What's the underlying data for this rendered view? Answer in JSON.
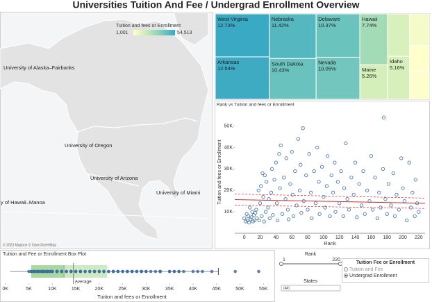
{
  "title": "Universities Tuition And Fee / Undergrad Enrollment Overview",
  "chart_data": [
    {
      "type": "map",
      "colorbar": {
        "title": "Tuition and fees or Enrollment",
        "range": [
          {
            "value": 1001,
            "label": "1,001"
          },
          {
            "value": 54513,
            "label": "54,513"
          }
        ]
      },
      "colorscale": [
        "#ffffcc",
        "#c7e9b4",
        "#7fcdbb",
        "#3aa9c4"
      ],
      "annotations": [
        "University of Alaska–Fairbanks",
        "University of Oregon",
        "University of Arizona",
        "University of Miami",
        "y of Hawaii–Manoa"
      ],
      "credits": "© 2023 Mapbox © OpenStreetMap"
    },
    {
      "type": "treemap",
      "categories": [
        "West Virginia",
        "Arkansas",
        "Nebraska",
        "South Dakota",
        "Delaware",
        "Nevada",
        "Hawaii",
        "Maine",
        null,
        "Idaho",
        null,
        null,
        null
      ],
      "values": [
        12.73,
        12.54,
        11.42,
        10.43,
        10.37,
        10.05,
        7.74,
        5.26,
        5.1,
        5.16,
        3.4,
        2.8,
        3.0
      ],
      "value_labels": [
        "12.73%",
        "12.54%",
        "11.42%",
        "10.43%",
        "10.37%",
        "10.05%",
        "7.74%",
        "5.26%",
        null,
        "5.16%",
        null,
        null,
        null
      ],
      "colorscale": [
        "#ffffcc",
        "#c7e9b4",
        "#7fcdbb",
        "#3aa9c4"
      ]
    },
    {
      "type": "scatter",
      "title": "Rank vs Tuition and fees or Enrollment",
      "xlabel": "Rank",
      "ylabel": "Tuition and fees or Enrollment",
      "color": "#4e79a7",
      "x": [
        0,
        2,
        3,
        4,
        5,
        6,
        7,
        8,
        9,
        10,
        11,
        12,
        13,
        14,
        15,
        16,
        18,
        19,
        20,
        21,
        22,
        23,
        24,
        25,
        26,
        27,
        28,
        30,
        31,
        32,
        34,
        35,
        36,
        38,
        40,
        41,
        42,
        44,
        45,
        46,
        48,
        50,
        52,
        53,
        55,
        56,
        58,
        60,
        61,
        62,
        64,
        66,
        68,
        70,
        71,
        72,
        74,
        75,
        78,
        80,
        82,
        84,
        85,
        88,
        90,
        92,
        94,
        95,
        98,
        100,
        102,
        104,
        105,
        108,
        110,
        112,
        114,
        115,
        118,
        120,
        122,
        125,
        126,
        128,
        130,
        132,
        135,
        138,
        140,
        142,
        145,
        148,
        150,
        152,
        155,
        158,
        160,
        162,
        165,
        168,
        170,
        172,
        175,
        176,
        178,
        180,
        182,
        185,
        188,
        190,
        192,
        195,
        198,
        200,
        202,
        205,
        208,
        210,
        212,
        215,
        216,
        218,
        220
      ],
      "y": [
        7000,
        5500,
        9000,
        6000,
        8000,
        5000,
        12000,
        6500,
        7500,
        10000,
        5500,
        8500,
        6000,
        9500,
        11000,
        7000,
        20000,
        6000,
        14000,
        22000,
        8000,
        28000,
        17000,
        5500,
        27000,
        10000,
        24000,
        12000,
        16000,
        7000,
        19000,
        30000,
        8500,
        25000,
        33000,
        14000,
        6000,
        37000,
        21000,
        41000,
        9000,
        26000,
        16000,
        35000,
        11000,
        6500,
        23000,
        38000,
        18000,
        8000,
        29000,
        13000,
        44000,
        20000,
        32000,
        9500,
        49000,
        15000,
        27000,
        11000,
        37000,
        19000,
        7000,
        29000,
        14000,
        40000,
        24000,
        9000,
        31000,
        17000,
        12000,
        22000,
        36000,
        8000,
        27000,
        19000,
        33000,
        10000,
        24000,
        14000,
        29000,
        8000,
        21000,
        42000,
        16000,
        11000,
        26000,
        18000,
        33000,
        7500,
        23000,
        13000,
        29000,
        9000,
        20000,
        15000,
        36000,
        11000,
        26000,
        7000,
        19000,
        12000,
        30000,
        54000,
        16000,
        9000,
        23000,
        13000,
        28000,
        8000,
        18000,
        11000,
        35000,
        21000,
        15000,
        6000,
        33000,
        12000,
        19000,
        8000,
        25000,
        14000,
        10000
      ],
      "trend": {
        "x": [
          -12,
          228
        ],
        "y": [
          15700,
          14000
        ],
        "upper": [
          18300,
          16400
        ],
        "lower": [
          13100,
          11600
        ],
        "color": "#d62728"
      },
      "xlim": [
        -12,
        228
      ],
      "ylim": [
        0,
        57000
      ],
      "xticks": [
        0,
        20,
        40,
        60,
        80,
        100,
        120,
        140,
        160,
        180,
        200,
        220
      ],
      "yticks": [
        {
          "value": 10000,
          "label": "10K"
        },
        {
          "value": 20000,
          "label": "20K"
        },
        {
          "value": 30000,
          "label": "30K"
        },
        {
          "value": 40000,
          "label": "40K"
        },
        {
          "value": 50000,
          "label": "50K"
        }
      ],
      "grid": false
    },
    {
      "type": "box",
      "title": "Tuition and Fee or Enrollment Box Plot",
      "xlabel": "Tuition and fees or Enrollment",
      "whisker_low": 1001,
      "q1": 5500,
      "median": 12500,
      "q3": 21700,
      "whisker_high": 45400,
      "mean": 14500,
      "mean_label": "Average",
      "colors": [
        "#a9d8a0",
        "#cdeac4"
      ],
      "point_color": "#3d6fa3",
      "xlim": [
        -1000,
        56000
      ],
      "xticks": [
        {
          "value": 0,
          "label": "0K"
        },
        {
          "value": 5000,
          "label": "5K"
        },
        {
          "value": 10000,
          "label": "10K"
        },
        {
          "value": 15000,
          "label": "15K"
        },
        {
          "value": 20000,
          "label": "20K"
        },
        {
          "value": 25000,
          "label": "25K"
        },
        {
          "value": 30000,
          "label": "30K"
        },
        {
          "value": 35000,
          "label": "35K"
        },
        {
          "value": 40000,
          "label": "40K"
        },
        {
          "value": 45000,
          "label": "45K"
        },
        {
          "value": 50000,
          "label": "50K"
        },
        {
          "value": 55000,
          "label": "55K"
        }
      ]
    }
  ],
  "controls": {
    "rank": {
      "label": "Rank",
      "min": 1,
      "max": 220
    },
    "states": {
      "label": "States",
      "value": "(All)"
    },
    "legend": {
      "title": "Tuition Fee or Enrollment",
      "options": [
        "Tuition and Fee",
        "Undergrad Enrollment"
      ],
      "selected": 1
    }
  }
}
